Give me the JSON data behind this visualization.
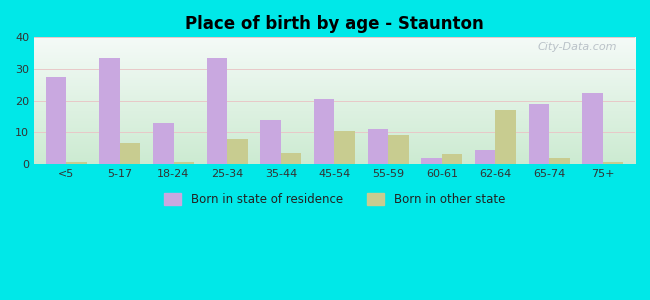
{
  "title": "Place of birth by age - Staunton",
  "categories": [
    "<5",
    "5-17",
    "18-24",
    "25-34",
    "35-44",
    "45-54",
    "55-59",
    "60-61",
    "62-64",
    "65-74",
    "75+"
  ],
  "born_in_state": [
    27.5,
    33.5,
    13.0,
    33.5,
    14.0,
    20.5,
    11.0,
    2.0,
    4.5,
    19.0,
    22.5
  ],
  "born_in_other": [
    0.5,
    6.5,
    0.5,
    8.0,
    3.5,
    10.5,
    9.0,
    3.0,
    17.0,
    2.0,
    0.5
  ],
  "color_state": "#c9a8e0",
  "color_other": "#c8cc90",
  "ylim": [
    0,
    40
  ],
  "yticks": [
    0,
    10,
    20,
    30,
    40
  ],
  "background_color": "#00e8e8",
  "legend_state": "Born in state of residence",
  "legend_other": "Born in other state",
  "bar_width": 0.38,
  "watermark": "City-Data.com"
}
